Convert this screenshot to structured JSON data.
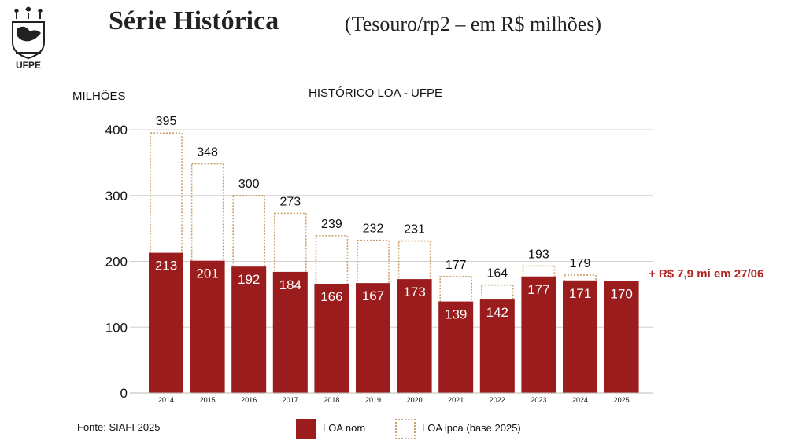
{
  "header": {
    "title": "Série Histórica",
    "subtitle": "(Tesouro/rp2 – em R$ milhões)",
    "logo_text": "UFPE"
  },
  "chart_data": {
    "type": "bar",
    "title": "HISTÓRICO LOA - UFPE",
    "ylabel": "MILHÕES",
    "xlabel": "",
    "ylim": [
      0,
      400
    ],
    "yticks": [
      0,
      100,
      200,
      300,
      400
    ],
    "grid": true,
    "categories": [
      "2014",
      "2015",
      "2016",
      "2017",
      "2018",
      "2019",
      "2020",
      "2021",
      "2022",
      "2023",
      "2024",
      "2025"
    ],
    "series": [
      {
        "name": "LOA nom",
        "values": [
          213,
          201,
          192,
          184,
          166,
          167,
          173,
          139,
          142,
          177,
          171,
          170
        ],
        "color": "#9b1c1c",
        "style": "solid"
      },
      {
        "name": "LOA ipca (base 2025)",
        "values": [
          395,
          348,
          300,
          273,
          239,
          232,
          231,
          177,
          164,
          193,
          179,
          null
        ],
        "color": "#c9a06a",
        "style": "dotted-outline"
      }
    ],
    "annotation": "+ R$ 7,9 mi em 27/06",
    "annotation_color": "#b22222",
    "legend": "bottom"
  },
  "footer": {
    "source": "Fonte: SIAFI 2025"
  }
}
